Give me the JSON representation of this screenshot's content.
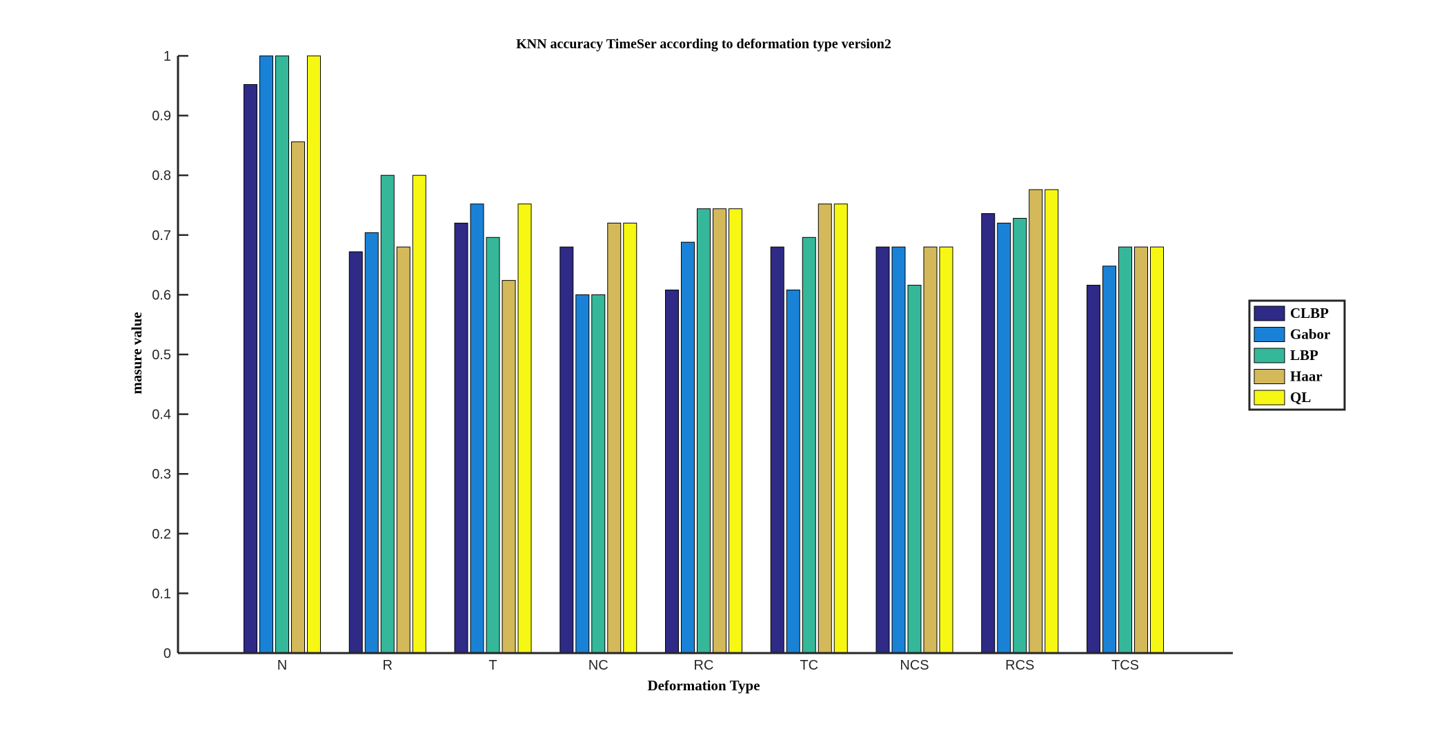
{
  "chart_data": {
    "type": "bar",
    "title": "KNN accuracy TimeSer according to deformation type version2",
    "xlabel": "Deformation Type",
    "ylabel": "masure value",
    "ylim": [
      0,
      1
    ],
    "yticks": [
      "0",
      "0.1",
      "0.2",
      "0.3",
      "0.4",
      "0.5",
      "0.6",
      "0.7",
      "0.8",
      "0.9",
      "1"
    ],
    "categories": [
      "N",
      "R",
      "T",
      "NC",
      "RC",
      "TC",
      "NCS",
      "RCS",
      "TCS"
    ],
    "series": [
      {
        "name": "CLBP",
        "color": "#2e2a86",
        "values": [
          0.952,
          0.672,
          0.72,
          0.68,
          0.608,
          0.68,
          0.68,
          0.736,
          0.616
        ]
      },
      {
        "name": "Gabor",
        "color": "#1a82d6",
        "values": [
          1.0,
          0.704,
          0.752,
          0.6,
          0.688,
          0.608,
          0.68,
          0.72,
          0.648
        ]
      },
      {
        "name": "LBP",
        "color": "#35b89a",
        "values": [
          1.0,
          0.8,
          0.696,
          0.6,
          0.744,
          0.696,
          0.616,
          0.728,
          0.68
        ]
      },
      {
        "name": "Haar",
        "color": "#d4b95a",
        "values": [
          0.856,
          0.68,
          0.624,
          0.72,
          0.744,
          0.752,
          0.68,
          0.776,
          0.68
        ]
      },
      {
        "name": "QL",
        "color": "#f7f714",
        "values": [
          1.0,
          0.8,
          0.752,
          0.72,
          0.744,
          0.752,
          0.68,
          0.776,
          0.68
        ]
      }
    ],
    "grid": false,
    "legend": "right"
  }
}
